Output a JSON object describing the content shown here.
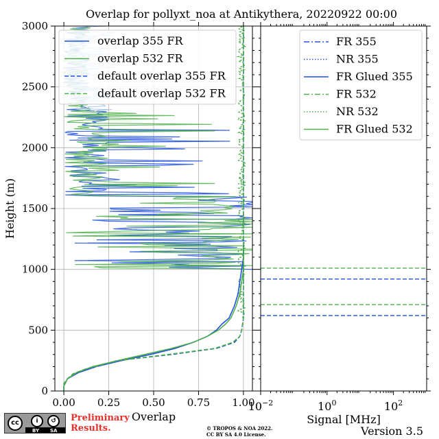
{
  "title": "Overlap for pollyxt_noa at Antikythera, 20220922 00:00",
  "version": "Version 3.5",
  "preliminary": [
    "Preliminary",
    "Results."
  ],
  "copyright": [
    "© TROPOS & NOA 2022.",
    "CC BY SA 4.0 License."
  ],
  "license_badge": {
    "cc": "cc",
    "by": "BY",
    "sa": "SA"
  },
  "colors": {
    "blue": "#1f4fe0",
    "green": "#4daf4a",
    "grid": "#b0b0b0"
  },
  "chart_data": [
    {
      "type": "line",
      "xlabel": "Overlap",
      "ylabel": "Height (m)",
      "xlim": [
        -0.05,
        1.05
      ],
      "ylim": [
        0,
        3000
      ],
      "xticks": [
        "0.00",
        "0.25",
        "0.50",
        "0.75",
        "1.00"
      ],
      "yticks": [
        "0",
        "500",
        "1000",
        "1500",
        "2000",
        "2500",
        "3000"
      ],
      "grid": true,
      "legend_position": "top-right",
      "series": [
        {
          "name": "overlap 355 FR",
          "color": "#1f4fe0",
          "dash": "solid",
          "x": [
            0.0,
            0.0,
            0.02,
            0.08,
            0.18,
            0.32,
            0.48,
            0.62,
            0.72,
            0.8,
            0.85,
            0.88,
            0.92,
            0.95,
            0.97,
            0.98,
            0.99,
            1.0,
            1.0
          ],
          "y": [
            0,
            40,
            100,
            150,
            200,
            250,
            300,
            350,
            400,
            450,
            500,
            550,
            600,
            700,
            800,
            900,
            1000,
            1100,
            1200
          ]
        },
        {
          "name": "overlap 532 FR",
          "color": "#4daf4a",
          "dash": "solid",
          "x": [
            0.0,
            0.0,
            0.02,
            0.07,
            0.16,
            0.3,
            0.45,
            0.6,
            0.72,
            0.8,
            0.86,
            0.9,
            0.93,
            0.96,
            0.98,
            0.99,
            1.0,
            1.0,
            1.0
          ],
          "y": [
            0,
            40,
            100,
            150,
            200,
            250,
            300,
            350,
            400,
            450,
            500,
            550,
            600,
            700,
            800,
            900,
            1000,
            1100,
            1200
          ]
        },
        {
          "name": "default overlap 355 FR",
          "color": "#1f4fe0",
          "dash": "dashed",
          "x": [
            0.0,
            0.0,
            0.0,
            0.02,
            0.05,
            0.12,
            0.3,
            0.6,
            0.85,
            0.95,
            0.98,
            0.99,
            1.0,
            1.0,
            1.0
          ],
          "y": [
            0,
            20,
            60,
            100,
            140,
            180,
            250,
            300,
            350,
            400,
            450,
            500,
            600,
            1000,
            3000
          ]
        },
        {
          "name": "default overlap 532 FR",
          "color": "#4daf4a",
          "dash": "dashed",
          "x": [
            0.0,
            0.0,
            0.0,
            0.02,
            0.05,
            0.12,
            0.3,
            0.58,
            0.84,
            0.94,
            0.98,
            0.99,
            1.0,
            1.0,
            1.0
          ],
          "y": [
            0,
            20,
            60,
            100,
            140,
            180,
            250,
            300,
            350,
            400,
            450,
            500,
            600,
            1000,
            3000
          ]
        }
      ]
    },
    {
      "type": "line",
      "xlabel": "Signal [MHz]",
      "xscale": "log",
      "xlim": [
        0.01,
        1000
      ],
      "xticks": [
        "10^-2",
        "10^0",
        "10^2"
      ],
      "ylim": [
        0,
        3000
      ],
      "grid": false,
      "legend_position": "top-right",
      "series": [
        {
          "name": "FR 355",
          "color": "#1f4fe0",
          "dash": "dashdot"
        },
        {
          "name": "NR 355",
          "color": "#1f4fe0",
          "dash": "dotted"
        },
        {
          "name": "FR Glued 355",
          "color": "#1f4fe0",
          "dash": "solid"
        },
        {
          "name": "FR 532",
          "color": "#4daf4a",
          "dash": "dashdot"
        },
        {
          "name": "NR 532",
          "color": "#4daf4a",
          "dash": "dotted"
        },
        {
          "name": "FR Glued 532",
          "color": "#4daf4a",
          "dash": "solid"
        }
      ],
      "hlines": [
        {
          "y": 620,
          "color": "#1f4fe0",
          "dash": "dashed"
        },
        {
          "y": 710,
          "color": "#4daf4a",
          "dash": "dashed"
        },
        {
          "y": 920,
          "color": "#1f4fe0",
          "dash": "dashed"
        },
        {
          "y": 1010,
          "color": "#4daf4a",
          "dash": "dashed"
        }
      ]
    }
  ]
}
